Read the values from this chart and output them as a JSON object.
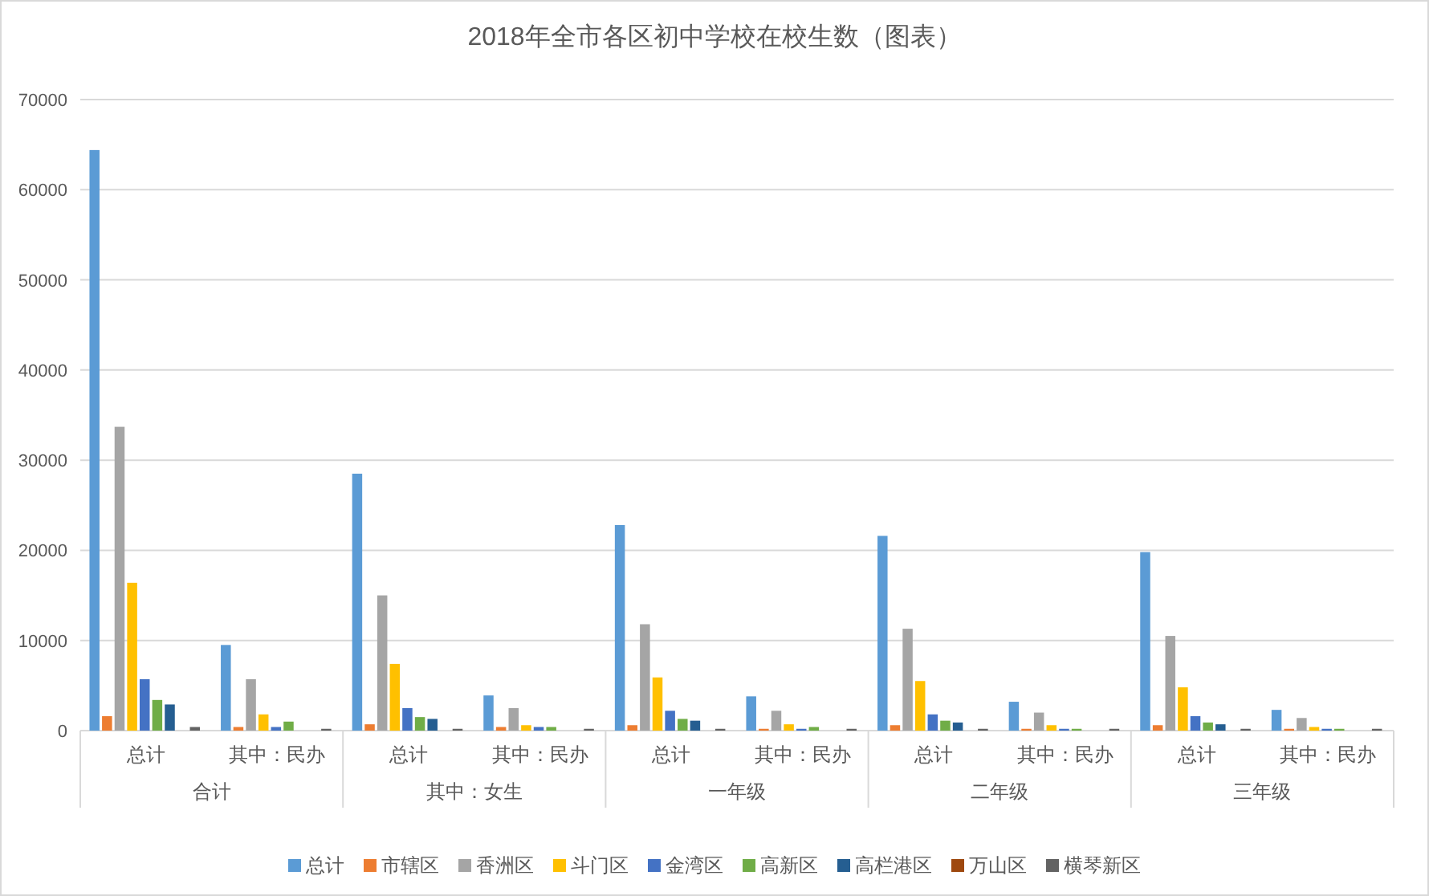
{
  "chart_data": {
    "type": "bar",
    "title": "2018年全市各区初中学校在校生数（图表）",
    "categories": [
      "总计",
      "其中：民办",
      "总计",
      "其中：民办",
      "总计",
      "其中：民办",
      "总计",
      "其中：民办",
      "总计",
      "其中：民办"
    ],
    "annotations": [
      "合计",
      "其中：女生",
      "一年级",
      "二年级",
      "三年级"
    ],
    "series": [
      {
        "name": "总计",
        "color": "#5b9bd5",
        "values": [
          64400,
          9500,
          28500,
          3900,
          22800,
          3800,
          21600,
          3200,
          19800,
          2300
        ]
      },
      {
        "name": "市辖区",
        "color": "#ed7d31",
        "values": [
          1600,
          400,
          700,
          400,
          600,
          200,
          600,
          200,
          600,
          200
        ]
      },
      {
        "name": "香洲区",
        "color": "#a5a5a5",
        "values": [
          33700,
          5700,
          15000,
          2500,
          11800,
          2200,
          11300,
          2000,
          10500,
          1400
        ]
      },
      {
        "name": "斗门区",
        "color": "#ffc000",
        "values": [
          16400,
          1800,
          7400,
          600,
          5900,
          700,
          5500,
          600,
          4800,
          400
        ]
      },
      {
        "name": "金湾区",
        "color": "#4472c4",
        "values": [
          5700,
          400,
          2500,
          400,
          2200,
          200,
          1800,
          200,
          1600,
          200
        ]
      },
      {
        "name": "高新区",
        "color": "#70ad47",
        "values": [
          3400,
          1000,
          1500,
          400,
          1300,
          400,
          1100,
          200,
          900,
          200
        ]
      },
      {
        "name": "高栏港区",
        "color": "#255e91",
        "values": [
          2900,
          0,
          1300,
          0,
          1100,
          0,
          900,
          0,
          700,
          0
        ]
      },
      {
        "name": "万山区",
        "color": "#9e480e",
        "values": [
          0,
          0,
          0,
          0,
          0,
          0,
          0,
          0,
          0,
          0
        ]
      },
      {
        "name": "横琴新区",
        "color": "#636363",
        "values": [
          400,
          200,
          200,
          200,
          200,
          200,
          200,
          200,
          200,
          200
        ]
      }
    ],
    "ylim": [
      0,
      70000
    ],
    "yticks": [
      0,
      10000,
      20000,
      30000,
      40000,
      50000,
      60000,
      70000
    ],
    "grid": "y",
    "legend": "bottom"
  }
}
